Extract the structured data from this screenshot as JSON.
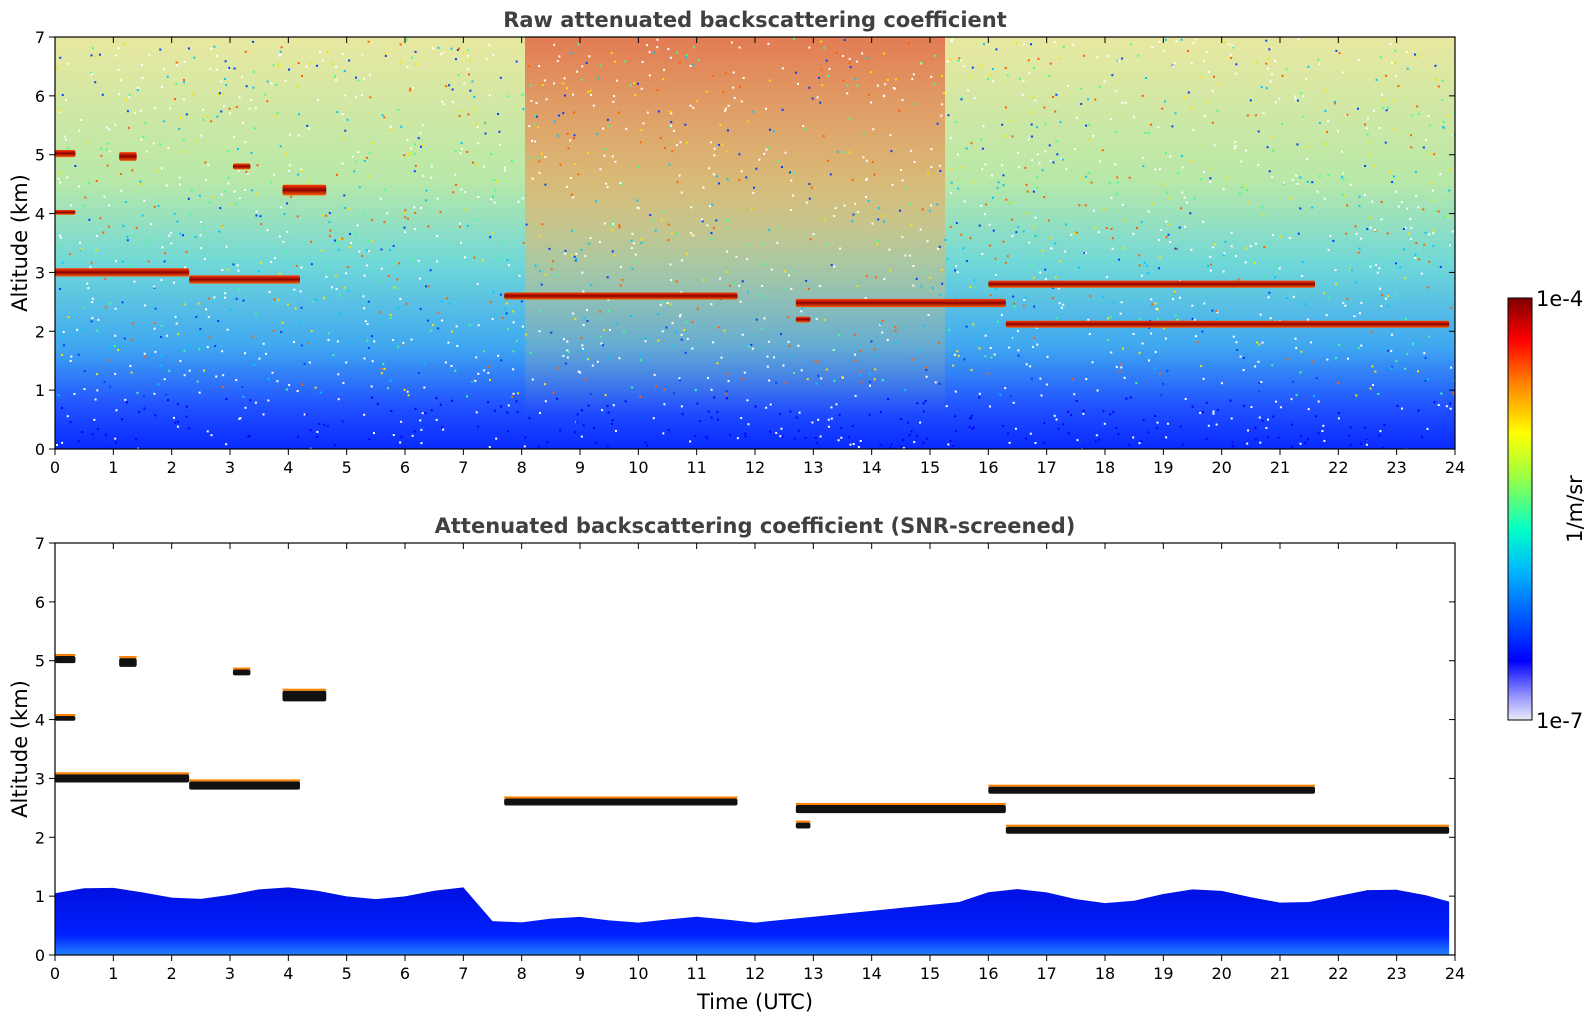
{
  "chart_data": [
    {
      "type": "heatmap",
      "title": "Raw attenuated backscattering coefficient",
      "xlabel": "",
      "ylabel": "Altitude (km)",
      "x_ticks": [
        0,
        1,
        2,
        3,
        4,
        5,
        6,
        7,
        8,
        9,
        10,
        11,
        12,
        13,
        14,
        15,
        16,
        17,
        18,
        19,
        20,
        21,
        22,
        23,
        24
      ],
      "y_ticks": [
        0,
        1,
        2,
        3,
        4,
        5,
        6,
        7
      ],
      "xlim": [
        0,
        24
      ],
      "ylim": [
        0,
        7
      ],
      "screened": false,
      "layers": [
        {
          "x": [
            0.0,
            0.35
          ],
          "y": 5.02,
          "thick": 0.12
        },
        {
          "x": [
            0.0,
            0.35
          ],
          "y": 4.02,
          "thick": 0.08
        },
        {
          "x": [
            1.1,
            1.4
          ],
          "y": 4.97,
          "thick": 0.15
        },
        {
          "x": [
            3.05,
            3.35
          ],
          "y": 4.8,
          "thick": 0.1
        },
        {
          "x": [
            3.9,
            4.65
          ],
          "y": 4.4,
          "thick": 0.18
        },
        {
          "x": [
            0.0,
            2.3
          ],
          "y": 3.0,
          "thick": 0.14
        },
        {
          "x": [
            2.3,
            4.2
          ],
          "y": 2.88,
          "thick": 0.14
        },
        {
          "x": [
            7.7,
            11.7
          ],
          "y": 2.6,
          "thick": 0.12
        },
        {
          "x": [
            12.7,
            16.3
          ],
          "y": 2.48,
          "thick": 0.14
        },
        {
          "x": [
            16.0,
            21.6
          ],
          "y": 2.8,
          "thick": 0.12
        },
        {
          "x": [
            16.3,
            23.9
          ],
          "y": 2.12,
          "thick": 0.12
        },
        {
          "x": [
            12.7,
            12.95
          ],
          "y": 2.2,
          "thick": 0.1
        }
      ]
    },
    {
      "type": "heatmap",
      "title": "Attenuated backscattering coefficient (SNR-screened)",
      "xlabel": "Time (UTC)",
      "ylabel": "Altitude (km)",
      "x_ticks": [
        0,
        1,
        2,
        3,
        4,
        5,
        6,
        7,
        8,
        9,
        10,
        11,
        12,
        13,
        14,
        15,
        16,
        17,
        18,
        19,
        20,
        21,
        22,
        23,
        24
      ],
      "y_ticks": [
        0,
        1,
        2,
        3,
        4,
        5,
        6,
        7
      ],
      "xlim": [
        0,
        24
      ],
      "ylim": [
        0,
        7
      ],
      "screened": true,
      "layers": [
        {
          "x": [
            0.0,
            0.35
          ],
          "y": 5.02,
          "thick": 0.12
        },
        {
          "x": [
            0.0,
            0.35
          ],
          "y": 4.02,
          "thick": 0.08
        },
        {
          "x": [
            1.1,
            1.4
          ],
          "y": 4.97,
          "thick": 0.15
        },
        {
          "x": [
            3.05,
            3.35
          ],
          "y": 4.8,
          "thick": 0.1
        },
        {
          "x": [
            3.9,
            4.65
          ],
          "y": 4.4,
          "thick": 0.18
        },
        {
          "x": [
            0.0,
            2.3
          ],
          "y": 3.0,
          "thick": 0.14
        },
        {
          "x": [
            2.3,
            4.2
          ],
          "y": 2.88,
          "thick": 0.14
        },
        {
          "x": [
            7.7,
            11.7
          ],
          "y": 2.6,
          "thick": 0.12
        },
        {
          "x": [
            12.7,
            16.3
          ],
          "y": 2.48,
          "thick": 0.14
        },
        {
          "x": [
            16.0,
            21.6
          ],
          "y": 2.8,
          "thick": 0.12
        },
        {
          "x": [
            16.3,
            23.9
          ],
          "y": 2.12,
          "thick": 0.12
        },
        {
          "x": [
            12.7,
            12.95
          ],
          "y": 2.2,
          "thick": 0.1
        }
      ]
    }
  ],
  "colorbar": {
    "label": "1/m/sr",
    "max_label": "1e-4",
    "min_label": "1e-7",
    "colormap": [
      "#e8e8f8",
      "#0000ff",
      "#00c8ff",
      "#00ffb4",
      "#ffff00",
      "#ff8000",
      "#ff0000",
      "#800000"
    ]
  }
}
